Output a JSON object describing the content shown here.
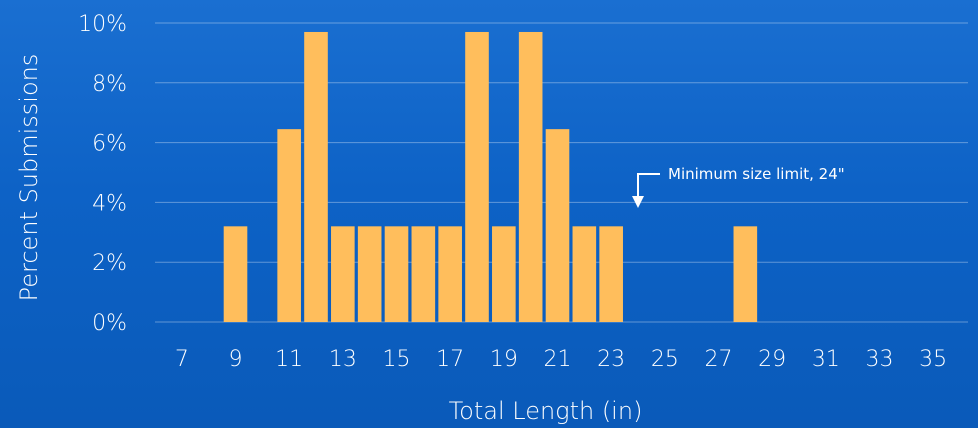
{
  "colors": {
    "bar": "#FFBE5C",
    "grid": "#7FB2EA",
    "text": "#FFFFFF"
  },
  "chart_data": {
    "type": "bar",
    "xlabel": "Total Length (in)",
    "ylabel": "Percent Submissions",
    "x_tick_labels": [
      "7",
      "9",
      "11",
      "13",
      "15",
      "17",
      "19",
      "21",
      "23",
      "25",
      "27",
      "29",
      "31",
      "33",
      "35"
    ],
    "x_range": [
      6,
      36
    ],
    "y_tick_labels": [
      "0%",
      "2%",
      "4%",
      "6%",
      "8%",
      "10%"
    ],
    "ylim": [
      0,
      10
    ],
    "grid": true,
    "bars": [
      {
        "x": 9,
        "value": 3.2
      },
      {
        "x": 11,
        "value": 6.45
      },
      {
        "x": 12,
        "value": 9.7
      },
      {
        "x": 13,
        "value": 3.2
      },
      {
        "x": 14,
        "value": 3.2
      },
      {
        "x": 15,
        "value": 3.2
      },
      {
        "x": 16,
        "value": 3.2
      },
      {
        "x": 17,
        "value": 3.2
      },
      {
        "x": 18,
        "value": 9.7
      },
      {
        "x": 19,
        "value": 3.2
      },
      {
        "x": 20,
        "value": 9.7
      },
      {
        "x": 21,
        "value": 6.45
      },
      {
        "x": 22,
        "value": 3.2
      },
      {
        "x": 23,
        "value": 3.2
      },
      {
        "x": 28,
        "value": 3.2
      }
    ],
    "annotation": {
      "text": "Minimum size limit, 24\"",
      "x": 24
    }
  }
}
